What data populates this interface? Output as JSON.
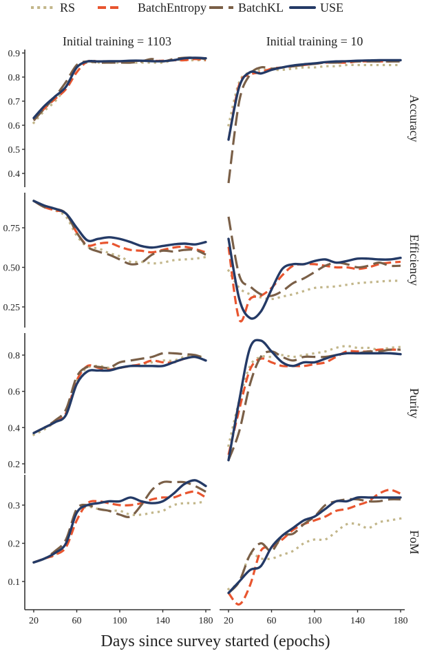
{
  "legend": {
    "items": [
      {
        "label": "RS",
        "color": "#C2B68A",
        "style": "dotted"
      },
      {
        "label": "BatchEntropy",
        "color": "#E8552F",
        "style": "dashed"
      },
      {
        "label": "BatchKL",
        "color": "#7A5F47",
        "style": "longdash"
      },
      {
        "label": "USE",
        "color": "#243A66",
        "style": "solid"
      }
    ]
  },
  "columns": [
    "Initial training = 1103",
    "Initial training = 10"
  ],
  "rows": [
    "Accuracy",
    "Efficiency",
    "Purity",
    "FoM"
  ],
  "xlabel": "Days since survey started (epochs)",
  "x_ticks": [
    "20",
    "60",
    "100",
    "140",
    "180"
  ],
  "chart_data": {
    "type": "line",
    "title": "",
    "xlabel": "Days since survey started (epochs)",
    "x": [
      20,
      30,
      40,
      50,
      60,
      70,
      80,
      90,
      100,
      110,
      120,
      130,
      140,
      150,
      160,
      170,
      180
    ],
    "xlim": [
      14,
      186
    ],
    "facets": [
      {
        "row": "Accuracy",
        "column": "Initial training = 1103",
        "ylim": [
          0.35,
          0.92
        ],
        "yticks": [
          0.4,
          0.5,
          0.6,
          0.7,
          0.8,
          0.9
        ],
        "series": [
          {
            "name": "RS",
            "values": [
              0.61,
              0.66,
              0.7,
              0.76,
              0.84,
              0.86,
              0.86,
              0.86,
              0.86,
              0.86,
              0.86,
              0.86,
              0.86,
              0.87,
              0.87,
              0.87,
              0.87
            ]
          },
          {
            "name": "BatchEntropy",
            "values": [
              0.62,
              0.67,
              0.71,
              0.75,
              0.82,
              0.865,
              0.865,
              0.865,
              0.865,
              0.867,
              0.868,
              0.867,
              0.868,
              0.87,
              0.87,
              0.875,
              0.87
            ]
          },
          {
            "name": "BatchKL",
            "values": [
              0.62,
              0.67,
              0.72,
              0.78,
              0.85,
              0.865,
              0.86,
              0.86,
              0.86,
              0.86,
              0.865,
              0.875,
              0.865,
              0.875,
              0.88,
              0.88,
              0.875
            ]
          },
          {
            "name": "USE",
            "values": [
              0.63,
              0.68,
              0.72,
              0.76,
              0.84,
              0.865,
              0.865,
              0.866,
              0.866,
              0.868,
              0.868,
              0.866,
              0.866,
              0.87,
              0.878,
              0.88,
              0.878
            ]
          }
        ]
      },
      {
        "row": "Accuracy",
        "column": "Initial training = 10",
        "ylim": [
          0.35,
          0.92
        ],
        "yticks": [
          0.4,
          0.5,
          0.6,
          0.7,
          0.8,
          0.9
        ],
        "series": [
          {
            "name": "RS",
            "values": [
              0.6,
              0.78,
              0.82,
              0.83,
              0.83,
              0.83,
              0.835,
              0.84,
              0.84,
              0.845,
              0.845,
              0.85,
              0.85,
              0.85,
              0.85,
              0.85,
              0.85
            ]
          },
          {
            "name": "BatchEntropy",
            "values": [
              0.54,
              0.77,
              0.81,
              0.82,
              0.835,
              0.84,
              0.845,
              0.85,
              0.855,
              0.86,
              0.86,
              0.86,
              0.865,
              0.865,
              0.865,
              0.865,
              0.87
            ]
          },
          {
            "name": "BatchKL",
            "values": [
              0.36,
              0.7,
              0.81,
              0.84,
              0.835,
              0.84,
              0.845,
              0.85,
              0.855,
              0.86,
              0.86,
              0.865,
              0.865,
              0.865,
              0.865,
              0.865,
              0.865
            ]
          },
          {
            "name": "USE",
            "values": [
              0.54,
              0.76,
              0.82,
              0.815,
              0.83,
              0.84,
              0.848,
              0.853,
              0.857,
              0.862,
              0.865,
              0.866,
              0.868,
              0.869,
              0.87,
              0.87,
              0.87
            ]
          }
        ]
      },
      {
        "row": "Efficiency",
        "column": "Initial training = 1103",
        "ylim": [
          0.12,
          0.95
        ],
        "yticks": [
          0.25,
          0.5,
          0.75
        ],
        "series": [
          {
            "name": "RS",
            "values": [
              0.92,
              0.89,
              0.86,
              0.82,
              0.7,
              0.63,
              0.62,
              0.59,
              0.57,
              0.535,
              0.535,
              0.525,
              0.53,
              0.545,
              0.55,
              0.555,
              0.565
            ]
          },
          {
            "name": "BatchEntropy",
            "values": [
              0.92,
              0.88,
              0.86,
              0.84,
              0.72,
              0.64,
              0.65,
              0.655,
              0.63,
              0.61,
              0.605,
              0.595,
              0.61,
              0.625,
              0.63,
              0.615,
              0.595
            ]
          },
          {
            "name": "BatchKL",
            "values": [
              0.92,
              0.88,
              0.87,
              0.84,
              0.72,
              0.63,
              0.6,
              0.58,
              0.55,
              0.52,
              0.53,
              0.58,
              0.605,
              0.6,
              0.61,
              0.61,
              0.58
            ]
          },
          {
            "name": "USE",
            "values": [
              0.92,
              0.89,
              0.87,
              0.84,
              0.75,
              0.67,
              0.68,
              0.69,
              0.68,
              0.66,
              0.635,
              0.625,
              0.635,
              0.645,
              0.65,
              0.645,
              0.66
            ]
          }
        ]
      },
      {
        "row": "Efficiency",
        "column": "Initial training = 10",
        "ylim": [
          0.12,
          0.95
        ],
        "yticks": [
          0.25,
          0.5,
          0.75
        ],
        "series": [
          {
            "name": "RS",
            "values": [
              0.48,
              0.37,
              0.33,
              0.31,
              0.3,
              0.315,
              0.33,
              0.35,
              0.37,
              0.375,
              0.38,
              0.39,
              0.4,
              0.405,
              0.41,
              0.415,
              0.415
            ]
          },
          {
            "name": "BatchEntropy",
            "values": [
              0.63,
              0.17,
              0.3,
              0.32,
              0.37,
              0.45,
              0.51,
              0.52,
              0.52,
              0.51,
              0.5,
              0.5,
              0.49,
              0.5,
              0.52,
              0.53,
              0.535
            ]
          },
          {
            "name": "BatchKL",
            "values": [
              0.82,
              0.45,
              0.38,
              0.33,
              0.32,
              0.35,
              0.4,
              0.43,
              0.47,
              0.51,
              0.53,
              0.52,
              0.5,
              0.51,
              0.53,
              0.51,
              0.51
            ]
          },
          {
            "name": "USE",
            "values": [
              0.68,
              0.3,
              0.18,
              0.22,
              0.36,
              0.49,
              0.52,
              0.52,
              0.54,
              0.55,
              0.53,
              0.54,
              0.555,
              0.555,
              0.55,
              0.55,
              0.56
            ]
          }
        ]
      },
      {
        "row": "Purity",
        "column": "Initial training = 1103",
        "ylim": [
          0.18,
          0.93
        ],
        "yticks": [
          0.2,
          0.4,
          0.6,
          0.8
        ],
        "series": [
          {
            "name": "RS",
            "values": [
              0.36,
              0.39,
              0.43,
              0.47,
              0.66,
              0.73,
              0.74,
              0.73,
              0.73,
              0.74,
              0.75,
              0.76,
              0.77,
              0.77,
              0.79,
              0.8,
              0.78
            ]
          },
          {
            "name": "BatchEntropy",
            "values": [
              0.37,
              0.4,
              0.43,
              0.48,
              0.66,
              0.74,
              0.73,
              0.72,
              0.73,
              0.74,
              0.75,
              0.77,
              0.76,
              0.76,
              0.78,
              0.79,
              0.77
            ]
          },
          {
            "name": "BatchKL",
            "values": [
              0.37,
              0.4,
              0.44,
              0.5,
              0.68,
              0.735,
              0.735,
              0.73,
              0.76,
              0.77,
              0.78,
              0.79,
              0.81,
              0.81,
              0.805,
              0.8,
              0.78
            ]
          },
          {
            "name": "USE",
            "values": [
              0.37,
              0.4,
              0.43,
              0.47,
              0.64,
              0.71,
              0.715,
              0.715,
              0.73,
              0.74,
              0.74,
              0.74,
              0.74,
              0.76,
              0.78,
              0.79,
              0.77
            ]
          }
        ]
      },
      {
        "row": "Purity",
        "column": "Initial training = 10",
        "ylim": [
          0.18,
          0.93
        ],
        "yticks": [
          0.2,
          0.4,
          0.6,
          0.8
        ],
        "series": [
          {
            "name": "RS",
            "values": [
              0.3,
              0.55,
              0.74,
              0.79,
              0.79,
              0.8,
              0.79,
              0.8,
              0.81,
              0.82,
              0.84,
              0.85,
              0.84,
              0.84,
              0.83,
              0.84,
              0.845
            ]
          },
          {
            "name": "BatchEntropy",
            "values": [
              0.25,
              0.5,
              0.72,
              0.78,
              0.76,
              0.74,
              0.74,
              0.74,
              0.75,
              0.76,
              0.79,
              0.82,
              0.82,
              0.82,
              0.83,
              0.83,
              0.83
            ]
          },
          {
            "name": "BatchKL",
            "values": [
              0.22,
              0.38,
              0.64,
              0.79,
              0.82,
              0.79,
              0.77,
              0.79,
              0.79,
              0.79,
              0.8,
              0.81,
              0.81,
              0.82,
              0.82,
              0.83,
              0.83
            ]
          },
          {
            "name": "USE",
            "values": [
              0.22,
              0.55,
              0.84,
              0.88,
              0.82,
              0.76,
              0.74,
              0.76,
              0.76,
              0.78,
              0.8,
              0.81,
              0.81,
              0.81,
              0.81,
              0.81,
              0.805
            ]
          }
        ]
      },
      {
        "row": "FoM",
        "column": "Initial training = 1103",
        "ylim": [
          0.03,
          0.38
        ],
        "yticks": [
          0.1,
          0.2,
          0.3
        ],
        "series": [
          {
            "name": "RS",
            "values": [
              0.15,
              0.16,
              0.17,
              0.2,
              0.28,
              0.295,
              0.29,
              0.285,
              0.285,
              0.275,
              0.275,
              0.28,
              0.285,
              0.3,
              0.305,
              0.305,
              0.31
            ]
          },
          {
            "name": "BatchEntropy",
            "values": [
              0.15,
              0.16,
              0.17,
              0.19,
              0.26,
              0.305,
              0.31,
              0.305,
              0.3,
              0.3,
              0.305,
              0.315,
              0.32,
              0.32,
              0.33,
              0.335,
              0.32
            ]
          },
          {
            "name": "BatchKL",
            "values": [
              0.15,
              0.16,
              0.18,
              0.21,
              0.29,
              0.3,
              0.29,
              0.285,
              0.275,
              0.27,
              0.3,
              0.34,
              0.36,
              0.36,
              0.36,
              0.35,
              0.335
            ]
          },
          {
            "name": "USE",
            "values": [
              0.15,
              0.16,
              0.175,
              0.2,
              0.28,
              0.3,
              0.305,
              0.31,
              0.31,
              0.32,
              0.31,
              0.305,
              0.31,
              0.33,
              0.355,
              0.365,
              0.35
            ]
          }
        ]
      },
      {
        "row": "FoM",
        "column": "Initial training = 10",
        "ylim": [
          0.03,
          0.38
        ],
        "yticks": [
          0.1,
          0.2,
          0.3
        ],
        "series": [
          {
            "name": "RS",
            "values": [
              0.08,
              0.1,
              0.17,
              0.16,
              0.16,
              0.17,
              0.18,
              0.2,
              0.21,
              0.21,
              0.23,
              0.25,
              0.25,
              0.24,
              0.255,
              0.26,
              0.265
            ]
          },
          {
            "name": "BatchEntropy",
            "values": [
              0.07,
              0.04,
              0.09,
              0.18,
              0.19,
              0.21,
              0.235,
              0.25,
              0.26,
              0.27,
              0.285,
              0.29,
              0.3,
              0.31,
              0.33,
              0.34,
              0.33
            ]
          },
          {
            "name": "BatchKL",
            "values": [
              0.07,
              0.1,
              0.17,
              0.2,
              0.18,
              0.22,
              0.225,
              0.25,
              0.27,
              0.3,
              0.31,
              0.315,
              0.315,
              0.31,
              0.31,
              0.315,
              0.315
            ]
          },
          {
            "name": "USE",
            "values": [
              0.07,
              0.1,
              0.13,
              0.14,
              0.19,
              0.22,
              0.24,
              0.26,
              0.27,
              0.29,
              0.31,
              0.31,
              0.32,
              0.32,
              0.32,
              0.32,
              0.32
            ]
          }
        ]
      }
    ]
  }
}
